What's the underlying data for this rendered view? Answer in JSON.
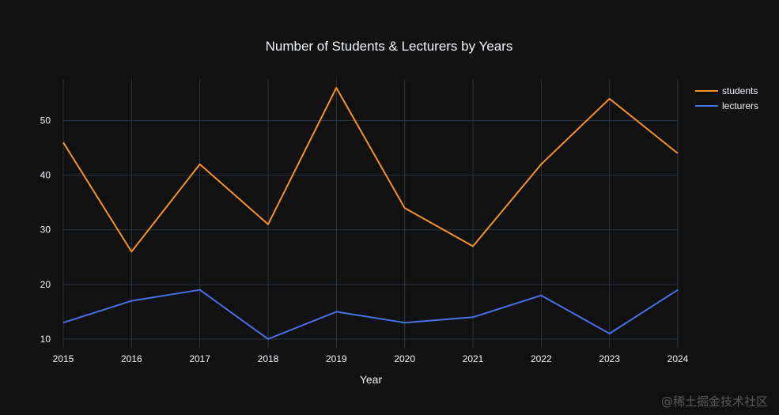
{
  "chart_data": {
    "type": "line",
    "title": "Number of Students & Lecturers by Years",
    "xlabel": "Year",
    "ylabel": "",
    "x": [
      2015,
      2016,
      2017,
      2018,
      2019,
      2020,
      2021,
      2022,
      2023,
      2024
    ],
    "x_ticks": [
      "2015",
      "2016",
      "2017",
      "2018",
      "2019",
      "2020",
      "2021",
      "2022",
      "2023",
      "2024"
    ],
    "y_ticks": [
      10,
      20,
      30,
      40,
      50
    ],
    "xlim": [
      2015,
      2024
    ],
    "ylim": [
      8.4,
      57.6
    ],
    "grid": true,
    "legend_position": "top-right",
    "series": [
      {
        "name": "students",
        "color": "#f4922b",
        "values": [
          46,
          26,
          42,
          31,
          56,
          34,
          27,
          42,
          54,
          44
        ]
      },
      {
        "name": "lecturers",
        "color": "#4a6fe3",
        "values": [
          13,
          17,
          19,
          10,
          15,
          13,
          14,
          18,
          11,
          19
        ]
      }
    ]
  },
  "watermark": "@稀土掘金技术社区"
}
